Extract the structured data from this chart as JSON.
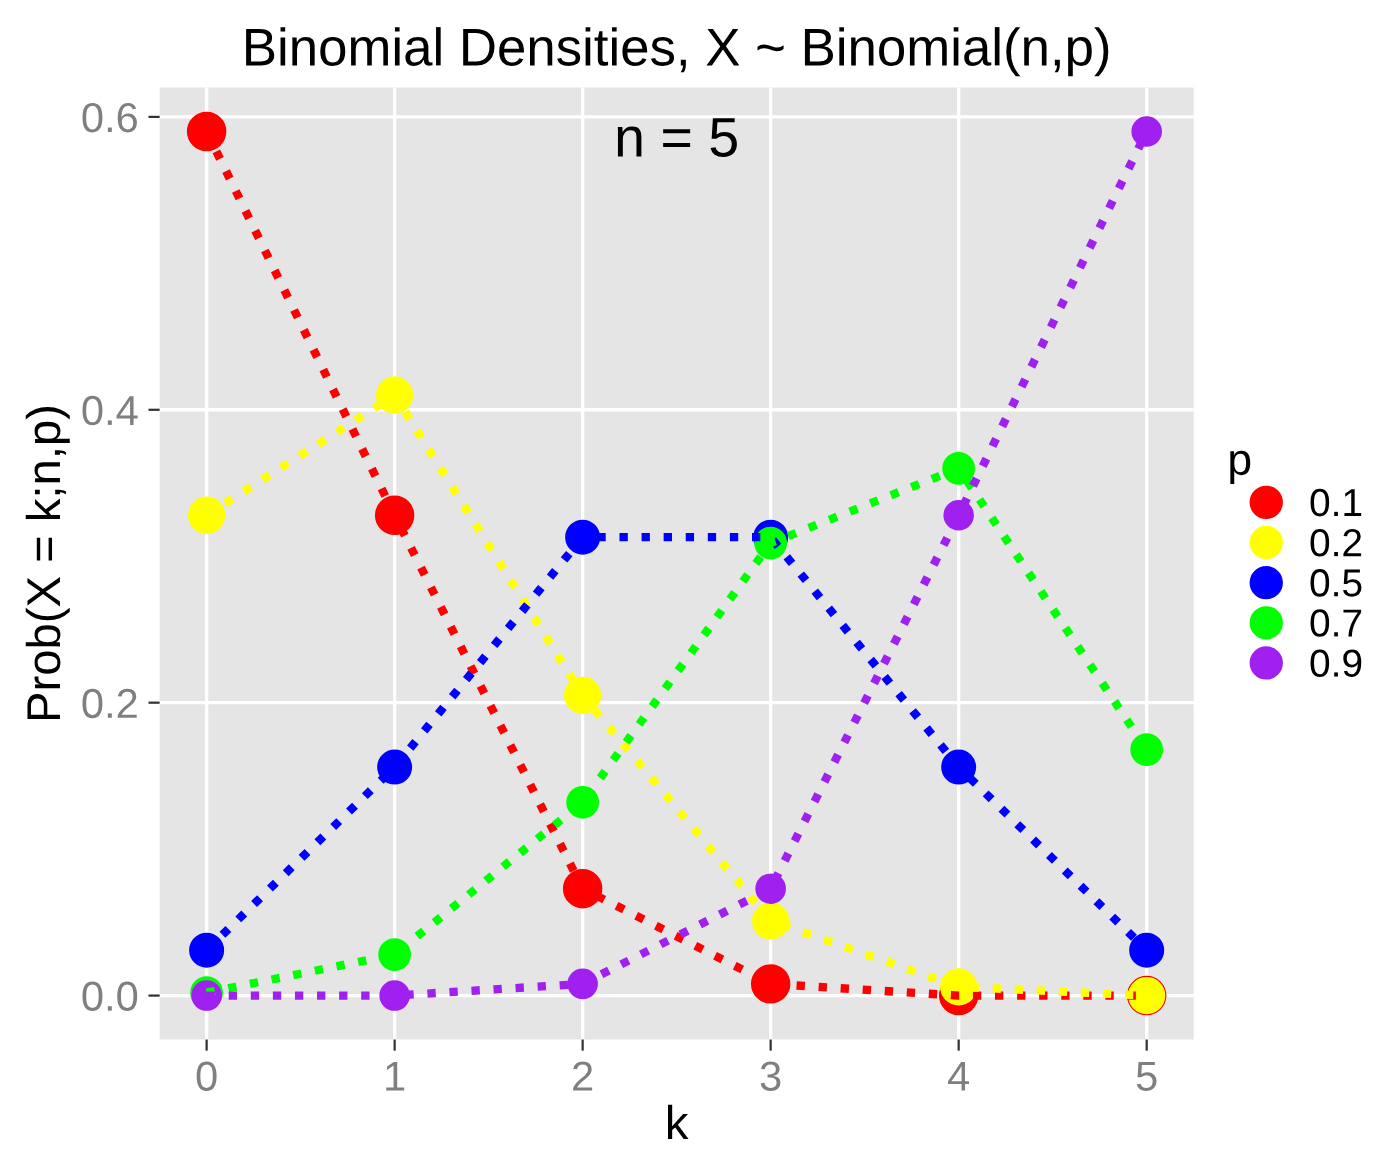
{
  "chart_data": {
    "type": "line",
    "title": "Binomial Densities, X ~ Binomial(n,p)",
    "xlabel": "k",
    "ylabel": "Prob(X = k;n,p)",
    "legend_title": "p",
    "annotations": [
      "n = 5"
    ],
    "x": [
      0,
      1,
      2,
      3,
      4,
      5
    ],
    "xlim": [
      -0.25,
      5.25
    ],
    "xticks": [
      0,
      1,
      2,
      3,
      4,
      5
    ],
    "ylim": [
      -0.03,
      0.62
    ],
    "yticks": [
      {
        "value": 0,
        "label": "0.0"
      },
      {
        "value": 0.2,
        "label": "0.2"
      },
      {
        "value": 0.4,
        "label": "0.4"
      },
      {
        "value": 0.6,
        "label": "0.6"
      }
    ],
    "grid": true,
    "legend": "right",
    "marker": "circle",
    "line_style": "dotted",
    "series": [
      {
        "name": "0.1",
        "color": "#ff0000",
        "values": [
          0.59,
          0.328,
          0.073,
          0.008,
          0.0,
          0.0
        ]
      },
      {
        "name": "0.2",
        "color": "#ffff00",
        "values": [
          0.328,
          0.41,
          0.205,
          0.051,
          0.006,
          0.0
        ]
      },
      {
        "name": "0.5",
        "color": "#0000ff",
        "values": [
          0.031,
          0.156,
          0.313,
          0.313,
          0.156,
          0.031
        ]
      },
      {
        "name": "0.7",
        "color": "#00ff00",
        "values": [
          0.002,
          0.028,
          0.132,
          0.309,
          0.36,
          0.168
        ]
      },
      {
        "name": "0.9",
        "color": "#a020f0",
        "values": [
          0.0,
          0.0,
          0.008,
          0.073,
          0.328,
          0.59
        ]
      }
    ]
  }
}
